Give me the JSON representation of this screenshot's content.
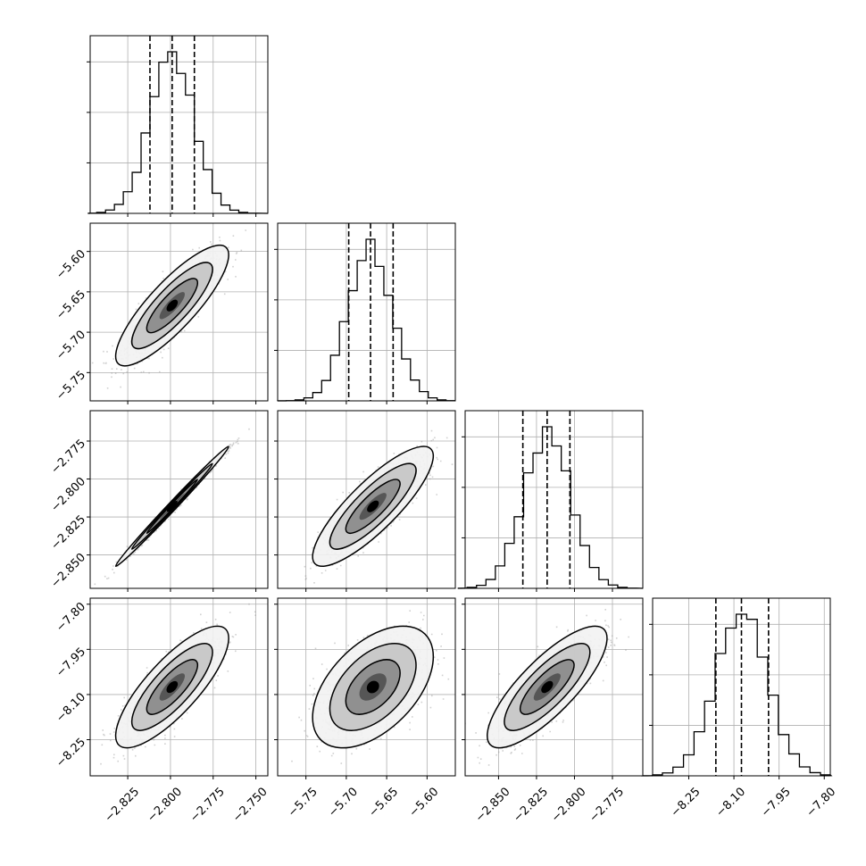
{
  "chart_data": {
    "type": "corner",
    "grid": true,
    "colors": {
      "line": "#000000",
      "grid": "#b0b0b0",
      "scatter": "#9a9a9a"
    },
    "parameters": [
      {
        "xlim": [
          -2.847,
          -2.743
        ],
        "ticks": [
          -2.825,
          -2.8,
          -2.775,
          -2.75
        ],
        "tick_labels": [
          "−2.825",
          "−2.800",
          "−2.775",
          "−2.750"
        ],
        "quantiles": [
          -2.812,
          -2.799,
          -2.786
        ]
      },
      {
        "xlim": [
          -5.785,
          -5.565
        ],
        "ticks": [
          -5.75,
          -5.7,
          -5.65,
          -5.6
        ],
        "tick_labels": [
          "−5.75",
          "−5.70",
          "−5.65",
          "−5.60"
        ],
        "quantiles": [
          -5.697,
          -5.67,
          -5.642
        ]
      },
      {
        "xlim": [
          -2.872,
          -2.755
        ],
        "ticks": [
          -2.85,
          -2.825,
          -2.8,
          -2.775
        ],
        "tick_labels": [
          "−2.850",
          "−2.825",
          "−2.800",
          "−2.775"
        ],
        "quantiles": [
          -2.834,
          -2.818,
          -2.803
        ]
      },
      {
        "xlim": [
          -8.37,
          -7.78
        ],
        "ticks": [
          -8.25,
          -8.1,
          -7.95,
          -7.8
        ],
        "tick_labels": [
          "−8.25",
          "−8.10",
          "−7.95",
          "−7.80"
        ],
        "quantiles": [
          -8.16,
          -8.075,
          -7.985
        ]
      }
    ],
    "pairs": [
      {
        "row": 1,
        "col": 0,
        "center": [
          -2.799,
          -5.667
        ],
        "sd": [
          0.0135,
          0.0305
        ],
        "rho": 0.84
      },
      {
        "row": 2,
        "col": 0,
        "center": [
          -2.799,
          -2.818
        ],
        "sd": [
          0.0135,
          0.0161
        ],
        "rho": 0.995
      },
      {
        "row": 2,
        "col": 1,
        "center": [
          -5.667,
          -2.818
        ],
        "sd": [
          0.0305,
          0.0161
        ],
        "rho": 0.84
      },
      {
        "row": 3,
        "col": 0,
        "center": [
          -2.799,
          -8.075
        ],
        "sd": [
          0.0135,
          0.0825
        ],
        "rho": 0.8
      },
      {
        "row": 3,
        "col": 1,
        "center": [
          -5.667,
          -8.075
        ],
        "sd": [
          0.0305,
          0.0825
        ],
        "rho": 0.5
      },
      {
        "row": 3,
        "col": 2,
        "center": [
          -2.818,
          -8.075
        ],
        "sd": [
          0.0161,
          0.0825
        ],
        "rho": 0.8
      }
    ]
  }
}
